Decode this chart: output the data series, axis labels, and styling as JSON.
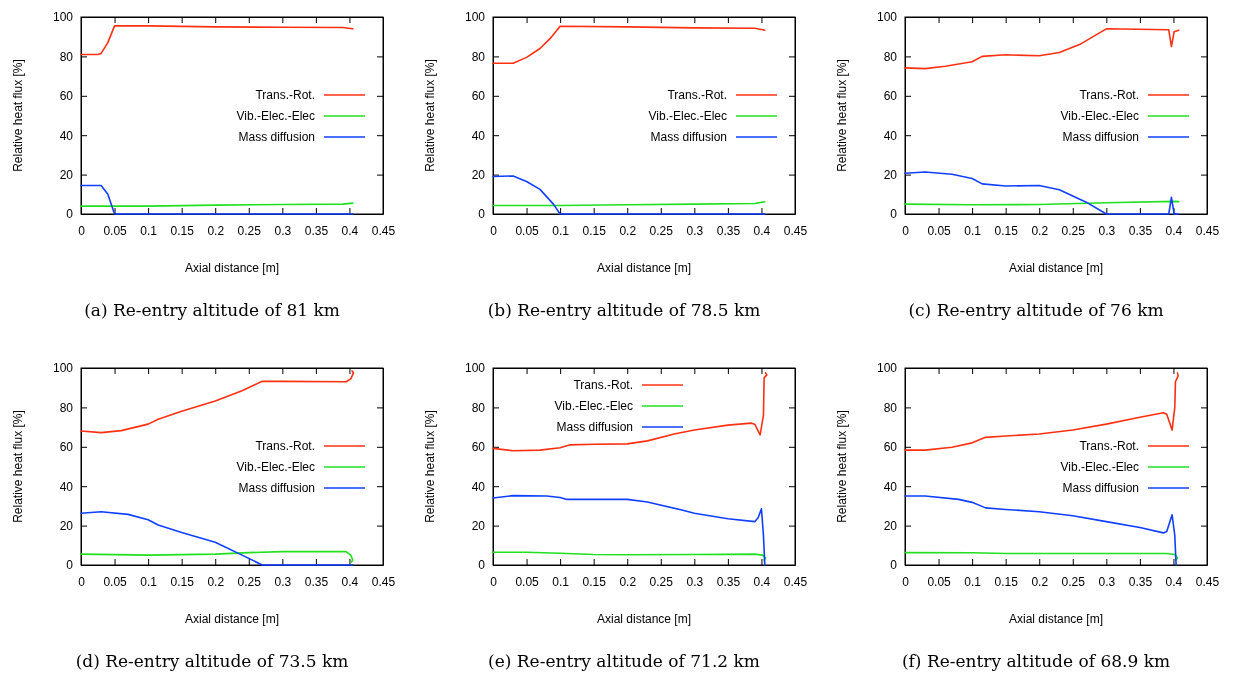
{
  "chart_data": [
    {
      "type": "line",
      "title": "(a) Re-entry altitude of 81 km",
      "xlabel": "Axial distance [m]",
      "ylabel": "Relative heat flux [%]",
      "xlim": [
        0,
        0.45
      ],
      "ylim": [
        0,
        100
      ],
      "xticks": [
        0,
        0.05,
        0.1,
        0.15,
        0.2,
        0.25,
        0.3,
        0.35,
        0.4,
        0.45
      ],
      "yticks": [
        0,
        20,
        40,
        60,
        80,
        100
      ],
      "grid": false,
      "legend": "right",
      "line_style": "solid",
      "series": [
        {
          "name": "Trans.-Rot.",
          "color": "#ff3010",
          "x": [
            0,
            0.025,
            0.03,
            0.04,
            0.05,
            0.1,
            0.2,
            0.3,
            0.39,
            0.405
          ],
          "values": [
            81,
            81,
            81.5,
            87,
            95.5,
            95.5,
            95,
            94.8,
            94.7,
            94
          ]
        },
        {
          "name": "Vib.-Elec.-Elec",
          "color": "#20e020",
          "x": [
            0,
            0.1,
            0.2,
            0.3,
            0.39,
            0.405
          ],
          "values": [
            4,
            4,
            4.5,
            4.8,
            5,
            5.5
          ]
        },
        {
          "name": "Mass diffusion",
          "color": "#1040ff",
          "x": [
            0,
            0.03,
            0.04,
            0.05,
            0.405
          ],
          "values": [
            14.5,
            14.5,
            10,
            0,
            0
          ]
        }
      ]
    },
    {
      "type": "line",
      "title": "(b) Re-entry altitude of 78.5 km",
      "xlabel": "Axial distance [m]",
      "ylabel": "Relative heat flux [%]",
      "xlim": [
        0,
        0.45
      ],
      "ylim": [
        0,
        100
      ],
      "xticks": [
        0,
        0.05,
        0.1,
        0.15,
        0.2,
        0.25,
        0.3,
        0.35,
        0.4,
        0.45
      ],
      "yticks": [
        0,
        20,
        40,
        60,
        80,
        100
      ],
      "grid": false,
      "legend": "right",
      "line_style": "solid",
      "series": [
        {
          "name": "Trans.-Rot.",
          "color": "#ff3010",
          "x": [
            0,
            0.03,
            0.05,
            0.07,
            0.085,
            0.1,
            0.2,
            0.3,
            0.39,
            0.405
          ],
          "values": [
            76.5,
            76.5,
            79.5,
            84,
            89,
            95.3,
            95,
            94.5,
            94.3,
            93.3
          ]
        },
        {
          "name": "Vib.-Elec.-Elec",
          "color": "#20e020",
          "x": [
            0,
            0.1,
            0.2,
            0.3,
            0.39,
            0.405
          ],
          "values": [
            4.3,
            4.3,
            4.7,
            5,
            5.3,
            6.2
          ]
        },
        {
          "name": "Mass diffusion",
          "color": "#1040ff",
          "x": [
            0,
            0.03,
            0.05,
            0.07,
            0.09,
            0.1,
            0.405
          ],
          "values": [
            19,
            19.3,
            16.5,
            12.5,
            5,
            0,
            0
          ]
        }
      ]
    },
    {
      "type": "line",
      "title": "(c) Re-entry altitude of 76 km",
      "xlabel": "Axial distance [m]",
      "ylabel": "Relative heat flux [%]",
      "xlim": [
        0,
        0.45
      ],
      "ylim": [
        0,
        100
      ],
      "xticks": [
        0,
        0.05,
        0.1,
        0.15,
        0.2,
        0.25,
        0.3,
        0.35,
        0.4,
        0.45
      ],
      "yticks": [
        0,
        20,
        40,
        60,
        80,
        100
      ],
      "grid": false,
      "legend": "right",
      "line_style": "solid",
      "series": [
        {
          "name": "Trans.-Rot.",
          "color": "#ff3010",
          "x": [
            0,
            0.03,
            0.06,
            0.1,
            0.115,
            0.15,
            0.2,
            0.23,
            0.26,
            0.3,
            0.393,
            0.397,
            0.401,
            0.408
          ],
          "values": [
            74.2,
            73.8,
            75,
            77.3,
            80,
            80.8,
            80.3,
            82,
            86,
            94,
            93.5,
            85,
            92.5,
            93.3
          ]
        },
        {
          "name": "Vib.-Elec.-Elec",
          "color": "#20e020",
          "x": [
            0,
            0.1,
            0.2,
            0.3,
            0.4,
            0.408
          ],
          "values": [
            5,
            4.7,
            4.8,
            5.7,
            6.4,
            6.3
          ]
        },
        {
          "name": "Mass diffusion",
          "color": "#1040ff",
          "x": [
            0,
            0.03,
            0.07,
            0.1,
            0.115,
            0.15,
            0.2,
            0.23,
            0.27,
            0.3,
            0.393,
            0.397,
            0.401,
            0.408
          ],
          "values": [
            20.7,
            21.3,
            20.2,
            18,
            15.3,
            14.2,
            14.5,
            12.3,
            6,
            0,
            0,
            8.5,
            0,
            0
          ]
        }
      ]
    },
    {
      "type": "line",
      "title": "(d) Re-entry altitude of 73.5 km",
      "xlabel": "Axial distance [m]",
      "ylabel": "Relative heat flux [%]",
      "xlim": [
        0,
        0.45
      ],
      "ylim": [
        0,
        100
      ],
      "xticks": [
        0,
        0.05,
        0.1,
        0.15,
        0.2,
        0.25,
        0.3,
        0.35,
        0.4,
        0.45
      ],
      "yticks": [
        0,
        20,
        40,
        60,
        80,
        100
      ],
      "grid": false,
      "legend": "right",
      "line_style": "solid",
      "series": [
        {
          "name": "Trans.-Rot.",
          "color": "#ff3010",
          "x": [
            0,
            0.03,
            0.06,
            0.1,
            0.115,
            0.15,
            0.2,
            0.24,
            0.27,
            0.3,
            0.395,
            0.402,
            0.406,
            0.404
          ],
          "values": [
            68,
            67.2,
            68.2,
            71.5,
            74,
            78,
            83.3,
            88.5,
            93.3,
            93.2,
            93,
            94.5,
            97.5,
            98.5
          ]
        },
        {
          "name": "Vib.-Elec.-Elec",
          "color": "#20e020",
          "x": [
            0,
            0.1,
            0.2,
            0.25,
            0.3,
            0.395,
            0.402,
            0.405,
            0.403
          ],
          "values": [
            5.5,
            5,
            5.5,
            6.3,
            6.8,
            6.8,
            5,
            2.5,
            1.5
          ]
        },
        {
          "name": "Mass diffusion",
          "color": "#1040ff",
          "x": [
            0,
            0.03,
            0.07,
            0.1,
            0.115,
            0.15,
            0.2,
            0.24,
            0.27,
            0.405
          ],
          "values": [
            26.3,
            27,
            25.7,
            23,
            20.3,
            16.5,
            11.5,
            5,
            0,
            0
          ]
        }
      ]
    },
    {
      "type": "line",
      "title": "(e) Re-entry altitude of 71.2 km",
      "xlabel": "Axial distance [m]",
      "ylabel": "Relative heat flux [%]",
      "xlim": [
        0,
        0.45
      ],
      "ylim": [
        0,
        100
      ],
      "xticks": [
        0,
        0.05,
        0.1,
        0.15,
        0.2,
        0.25,
        0.3,
        0.35,
        0.4,
        0.45
      ],
      "yticks": [
        0,
        20,
        40,
        60,
        80,
        100
      ],
      "grid": false,
      "legend": "top",
      "line_style": "solid",
      "series": [
        {
          "name": "Trans.-Rot.",
          "color": "#ff3010",
          "x": [
            0,
            0.03,
            0.07,
            0.1,
            0.115,
            0.15,
            0.2,
            0.23,
            0.27,
            0.3,
            0.35,
            0.385,
            0.39,
            0.398,
            0.403,
            0.404,
            0.408,
            0.406
          ],
          "values": [
            59.2,
            58,
            58.3,
            59.5,
            61,
            61.3,
            61.5,
            63,
            66.5,
            68.5,
            71,
            72,
            71.5,
            66,
            76,
            95,
            96.5,
            97.5
          ]
        },
        {
          "name": "Vib.-Elec.-Elec",
          "color": "#20e020",
          "x": [
            0,
            0.05,
            0.1,
            0.15,
            0.2,
            0.3,
            0.39,
            0.402,
            0.406,
            0.404
          ],
          "values": [
            6.5,
            6.5,
            6,
            5.3,
            5.2,
            5.3,
            5.5,
            5,
            3.5,
            2.5
          ]
        },
        {
          "name": "Mass diffusion",
          "color": "#1040ff",
          "x": [
            0,
            0.03,
            0.08,
            0.1,
            0.11,
            0.2,
            0.23,
            0.28,
            0.3,
            0.35,
            0.39,
            0.395,
            0.4,
            0.403,
            0.405
          ],
          "values": [
            34,
            35.2,
            35,
            34.3,
            33.3,
            33.3,
            32,
            28,
            26.3,
            23.5,
            22,
            24,
            28.5,
            15,
            0
          ]
        }
      ]
    },
    {
      "type": "line",
      "title": "(f) Re-entry altitude of 68.9 km",
      "xlabel": "Axial distance [m]",
      "ylabel": "Relative heat flux [%]",
      "xlim": [
        0,
        0.45
      ],
      "ylim": [
        0,
        100
      ],
      "xticks": [
        0,
        0.05,
        0.1,
        0.15,
        0.2,
        0.25,
        0.3,
        0.35,
        0.4,
        0.45
      ],
      "yticks": [
        0,
        20,
        40,
        60,
        80,
        100
      ],
      "grid": false,
      "legend": "right",
      "line_style": "solid",
      "series": [
        {
          "name": "Trans.-Rot.",
          "color": "#ff3010",
          "x": [
            0,
            0.03,
            0.07,
            0.1,
            0.12,
            0.15,
            0.2,
            0.25,
            0.3,
            0.35,
            0.385,
            0.39,
            0.398,
            0.402,
            0.403,
            0.407,
            0.406
          ],
          "values": [
            58.3,
            58.3,
            59.8,
            62,
            64.8,
            65.5,
            66.5,
            68.5,
            71.5,
            75,
            77.3,
            76.5,
            68.5,
            80,
            93,
            96,
            97.5
          ]
        },
        {
          "name": "Vib.-Elec.-Elec",
          "color": "#20e020",
          "x": [
            0,
            0.1,
            0.15,
            0.3,
            0.39,
            0.402,
            0.406,
            0.404
          ],
          "values": [
            6.3,
            6.2,
            5.8,
            5.8,
            5.8,
            5.3,
            3.5,
            2.5
          ]
        },
        {
          "name": "Mass diffusion",
          "color": "#1040ff",
          "x": [
            0,
            0.03,
            0.08,
            0.1,
            0.12,
            0.15,
            0.2,
            0.25,
            0.3,
            0.35,
            0.385,
            0.39,
            0.398,
            0.402,
            0.404
          ],
          "values": [
            35,
            35,
            33.3,
            31.8,
            29,
            28.2,
            27,
            25,
            22,
            19,
            16.3,
            17,
            25.5,
            15,
            0
          ]
        }
      ]
    }
  ]
}
